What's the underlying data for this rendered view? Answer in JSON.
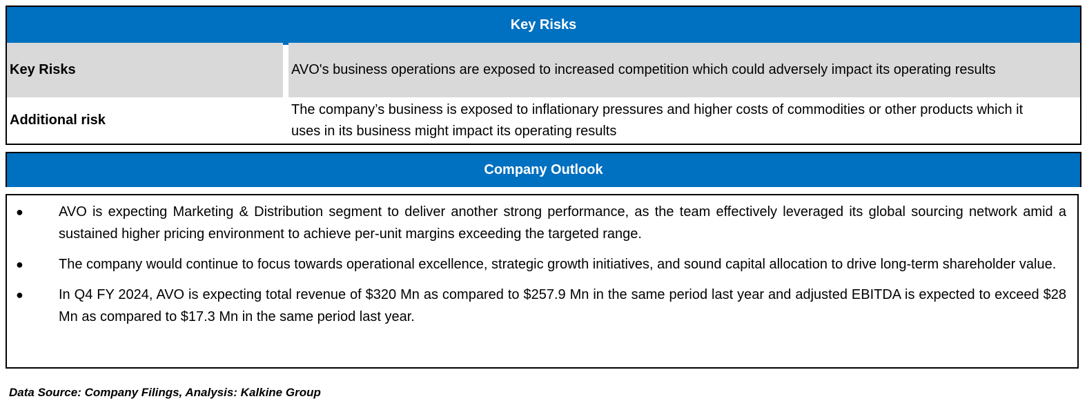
{
  "key_risks_table": {
    "header": "Key Risks",
    "rows": [
      {
        "label": "Key Risks",
        "text": "AVO's business operations are exposed to increased competition which could adversely impact its operating results"
      },
      {
        "label": "Additional risk",
        "text": "The company’s business is exposed to inflationary pressures and higher costs of commodities or other products which it uses in its business might impact its operating results"
      }
    ]
  },
  "company_outlook": {
    "header": "Company Outlook",
    "bullet_symbol": "●",
    "items": [
      "AVO is expecting Marketing & Distribution segment to deliver another strong performance, as the team effectively leveraged its global sourcing network amid a sustained higher pricing environment to achieve per-unit margins exceeding the targeted range.",
      "The company would continue to focus towards operational excellence, strategic growth initiatives, and sound capital allocation to drive long-term shareholder value.",
      "In Q4 FY 2024, AVO is expecting total revenue of $320 Mn as compared to $257.9 Mn in the same period last year and adjusted EBITDA is expected to exceed $28 Mn as compared to $17.3 Mn in the same period last year."
    ]
  },
  "footer": {
    "source": "Data Source: Company Filings, Analysis: Kalkine Group"
  },
  "colors": {
    "header_band": "#0070C0",
    "row_shade": "#D9D9D9"
  }
}
